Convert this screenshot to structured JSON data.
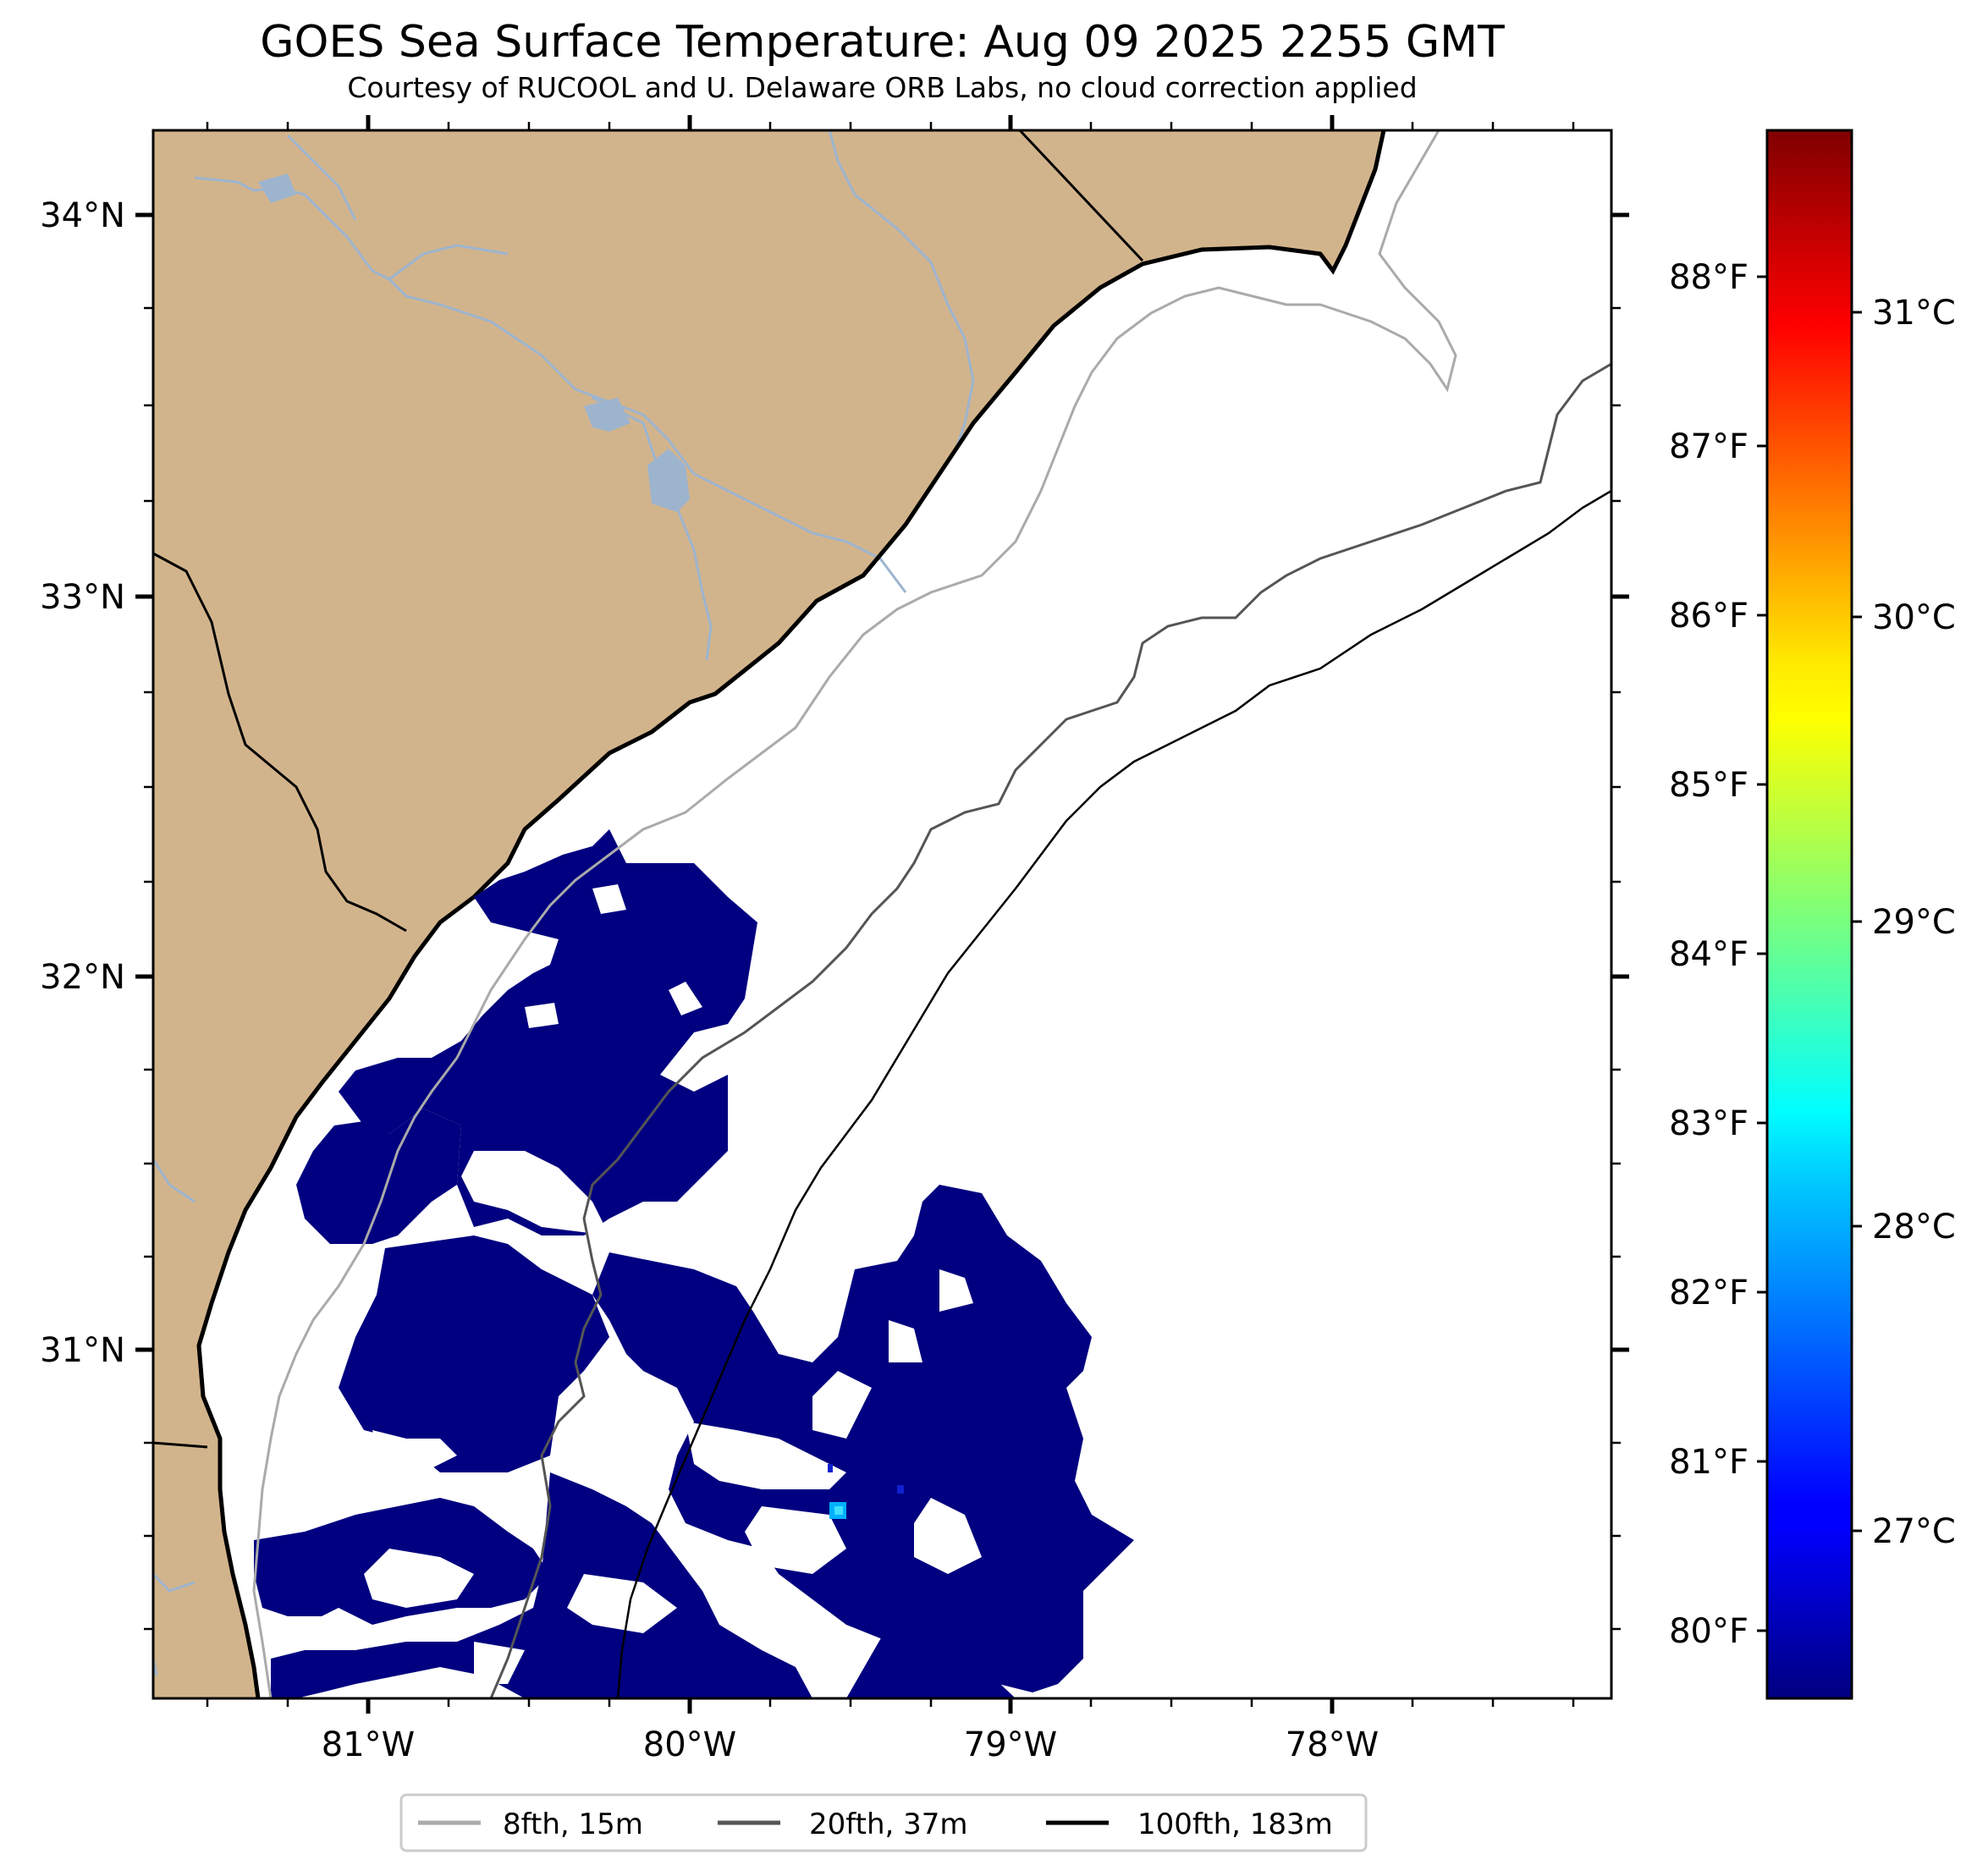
{
  "title": "GOES Sea Surface Temperature: Aug 09 2025 2255 GMT",
  "subtitle": "Courtesy of RUCOOL and U. Delaware ORB Labs, no cloud correction applied",
  "map": {
    "lon_labels": [
      "81°W",
      "80°W",
      "79°W",
      "78°W"
    ],
    "lat_labels": [
      "34°N",
      "33°N",
      "32°N",
      "31°N"
    ],
    "land_color": "#d2b48c",
    "river_color": "#9db4cf",
    "water_color": "#ffffff",
    "sst_dominant_color": "#000080"
  },
  "colorbar": {
    "colormap": "jet",
    "fahrenheit_labels": [
      "88°F",
      "87°F",
      "86°F",
      "85°F",
      "84°F",
      "83°F",
      "82°F",
      "81°F",
      "80°F"
    ],
    "celsius_labels": [
      "31°C",
      "30°C",
      "29°C",
      "28°C",
      "27°C"
    ]
  },
  "legend": {
    "items": [
      {
        "label": "8fth, 15m",
        "color": "#aaaaaa"
      },
      {
        "label": "20fth, 37m",
        "color": "#555555"
      },
      {
        "label": "100fth, 183m",
        "color": "#000000"
      }
    ]
  }
}
